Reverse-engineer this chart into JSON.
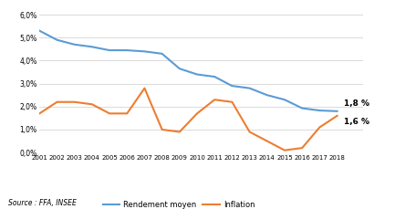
{
  "years": [
    2001,
    2002,
    2003,
    2004,
    2005,
    2006,
    2007,
    2008,
    2009,
    2010,
    2011,
    2012,
    2013,
    2014,
    2015,
    2016,
    2017,
    2018
  ],
  "rendement": [
    5.3,
    4.9,
    4.7,
    4.6,
    4.45,
    4.45,
    4.4,
    4.3,
    3.65,
    3.4,
    3.3,
    2.9,
    2.8,
    2.5,
    2.3,
    1.93,
    1.83,
    1.8
  ],
  "inflation": [
    1.7,
    2.2,
    2.2,
    2.1,
    1.7,
    1.7,
    2.8,
    1.0,
    0.9,
    1.7,
    2.3,
    2.2,
    0.9,
    0.5,
    0.1,
    0.2,
    1.1,
    1.6
  ],
  "rendement_color": "#5B9BD5",
  "inflation_color": "#ED7D31",
  "label_rendement": "Rendement moyen",
  "label_inflation": "Inflation",
  "annotation_rendement": "1,8 %",
  "annotation_inflation": "1,6 %",
  "source_text": "Source : FFA, INSEE",
  "ylim_min": 0.0,
  "ylim_max": 6.0,
  "ytick_labels": [
    "0,0%",
    "1,0%",
    "2,0%",
    "3,0%",
    "4,0%",
    "5,0%",
    "6,0%"
  ],
  "ytick_vals": [
    0.0,
    1.0,
    2.0,
    3.0,
    4.0,
    5.0,
    6.0
  ],
  "background_color": "#ffffff",
  "grid_color": "#cccccc"
}
